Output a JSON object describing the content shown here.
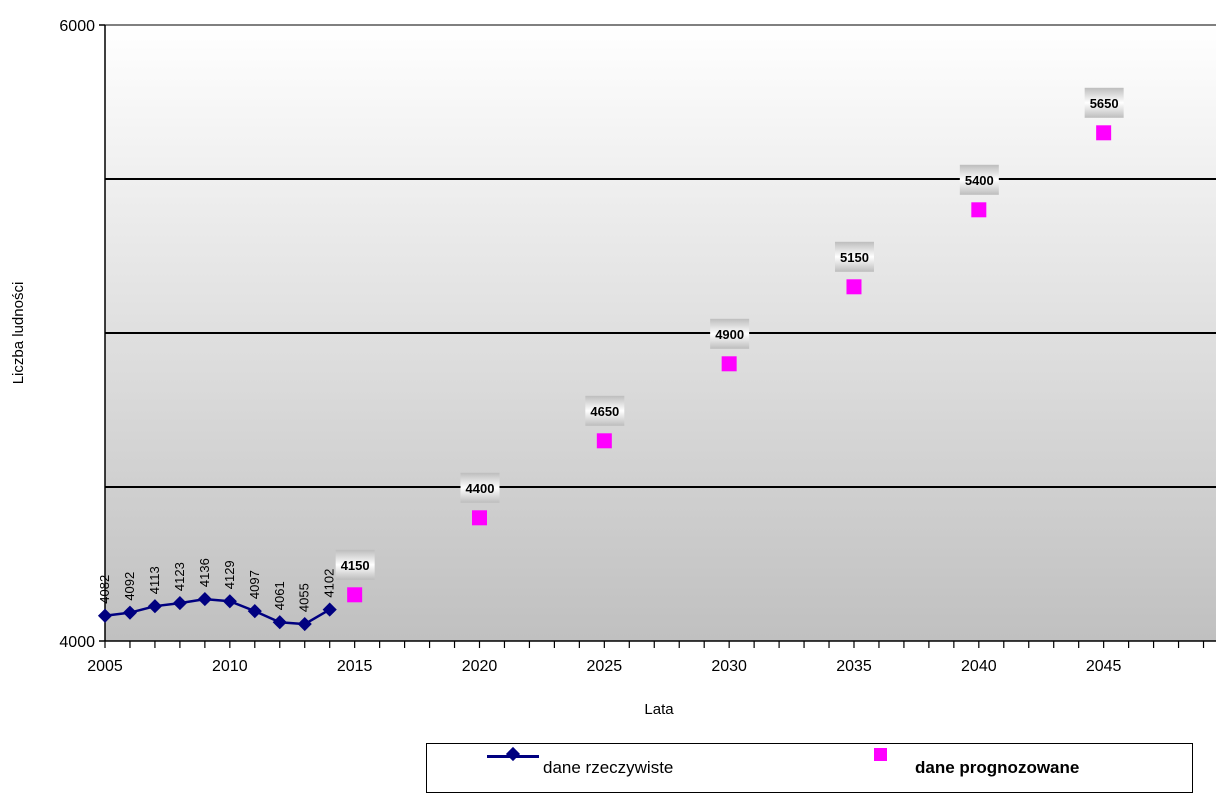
{
  "chart_data": {
    "type": "scatter",
    "xlabel": "Lata",
    "ylabel": "Liczba ludności",
    "xlim": [
      2005,
      2049.5
    ],
    "ylim": [
      4000,
      6000
    ],
    "x_tick_labels": [
      "2005",
      "2010",
      "2015",
      "2020",
      "2025",
      "2030",
      "2035",
      "2040",
      "2045"
    ],
    "y_tick_labels": [
      "4000",
      "6000"
    ],
    "y_gridlines": [
      4500,
      5000,
      5500
    ],
    "background": "gradient dark gray (bottom) to white (top)",
    "legend_position": "bottom",
    "series": [
      {
        "name": "dane rzeczywiste",
        "style": "line with diamond markers",
        "color": "#000080",
        "x": [
          2005,
          2006,
          2007,
          2008,
          2009,
          2010,
          2011,
          2012,
          2013,
          2014
        ],
        "y": [
          4082,
          4092,
          4113,
          4123,
          4136,
          4129,
          4097,
          4061,
          4055,
          4102
        ],
        "labels": [
          "4082",
          "4092",
          "4113",
          "4123",
          "4136",
          "4129",
          "4097",
          "4061",
          "4055",
          "4102"
        ]
      },
      {
        "name": "dane prognozowane",
        "style": "square markers",
        "color": "#ff00ff",
        "x": [
          2015,
          2020,
          2025,
          2030,
          2035,
          2040,
          2045
        ],
        "y": [
          4150,
          4400,
          4650,
          4900,
          5150,
          5400,
          5650
        ],
        "labels": [
          "4150",
          "4400",
          "4650",
          "4900",
          "5150",
          "5400",
          "5650"
        ]
      }
    ]
  }
}
